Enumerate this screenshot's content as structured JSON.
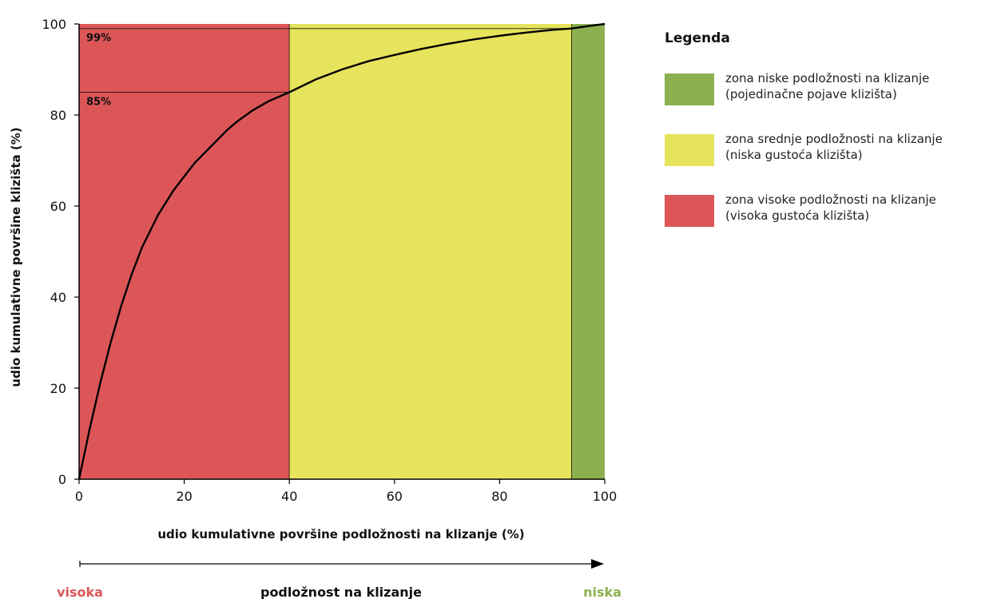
{
  "chart_data": {
    "type": "line",
    "title": "",
    "xlabel": "udio kumulativne površine podložnosti na klizanje (%)",
    "ylabel": "udio kumulativne površine klizišta (%)",
    "xlim": [
      0,
      100
    ],
    "ylim": [
      0,
      100
    ],
    "x_ticks": [
      0,
      20,
      40,
      60,
      80,
      100
    ],
    "y_ticks": [
      0,
      20,
      40,
      60,
      80,
      100
    ],
    "grid": false,
    "zones": [
      {
        "from": 0,
        "to": 40,
        "color": "#dc5658"
      },
      {
        "from": 40,
        "to": 93.7,
        "color": "#e6e35c"
      },
      {
        "from": 93.7,
        "to": 100,
        "color": "#8cb04e"
      }
    ],
    "series": [
      {
        "x": [
          0,
          2,
          4,
          6,
          8,
          10,
          12,
          15,
          18,
          20,
          22,
          25,
          28,
          30,
          33,
          36,
          40,
          45,
          50,
          55,
          60,
          65,
          70,
          75,
          80,
          85,
          90,
          93.7,
          96,
          98,
          100
        ],
        "y": [
          0,
          11,
          21,
          30,
          38,
          45,
          51,
          58,
          63.5,
          66.5,
          69.5,
          73,
          76.5,
          78.5,
          81,
          83,
          85,
          87.8,
          90,
          91.8,
          93.2,
          94.5,
          95.6,
          96.6,
          97.4,
          98.1,
          98.7,
          99,
          99.4,
          99.7,
          100
        ]
      }
    ],
    "annotations": [
      {
        "text": "99%",
        "y": 99,
        "x_end": 93.7
      },
      {
        "text": "85%",
        "y": 85,
        "x_end": 40
      }
    ]
  },
  "scale": {
    "label": "podložnost na klizanje",
    "left_label": "visoka",
    "right_label": "niska",
    "left_color": "#dc5658",
    "right_color": "#8cb04e"
  },
  "legend": {
    "title": "Legenda",
    "items": [
      {
        "line1": "zona niske podložnosti na klizanje",
        "line2": "(pojedinačne pojave klizišta)",
        "color": "#8cb04e"
      },
      {
        "line1": "zona srednje podložnosti na klizanje",
        "line2": "(niska gustoća klizišta)",
        "color": "#e6e35c"
      },
      {
        "line1": "zona visoke podložnosti na klizanje",
        "line2": "(visoka gustoća klizišta)",
        "color": "#dc5658"
      }
    ]
  }
}
